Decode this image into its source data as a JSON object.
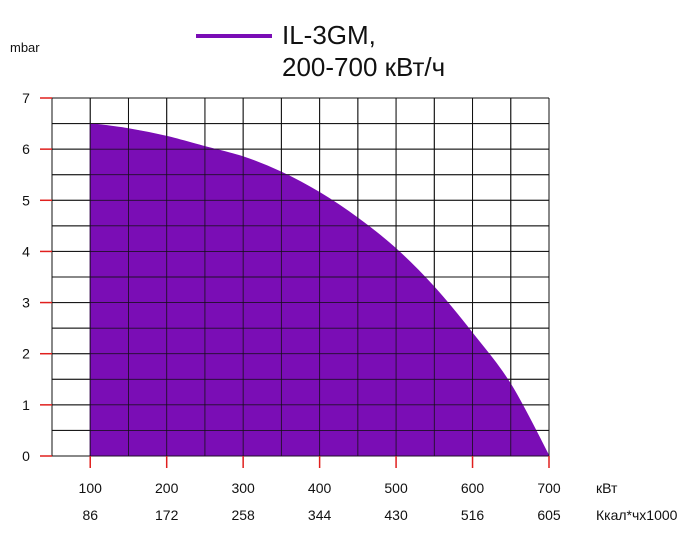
{
  "colors": {
    "series": "#7a0db5",
    "axis_tick": "#e0201e",
    "grid": "#111111"
  },
  "legend": {
    "line1": "IL-3GM,",
    "line2": "200-700 кВт/ч"
  },
  "chart_data": {
    "type": "area",
    "ylabel": "mbar",
    "xlabel": "кВт",
    "x2label": "Ккал*чх1000",
    "xlim": [
      50,
      700
    ],
    "ylim": [
      0,
      7
    ],
    "grid": true,
    "legend_position": "top",
    "x_ticks": [
      100,
      200,
      300,
      400,
      500,
      600,
      700
    ],
    "x_tick_labels": [
      "100",
      "200",
      "300",
      "400",
      "500",
      "600",
      "700"
    ],
    "x2_tick_labels": [
      "86",
      "172",
      "258",
      "344",
      "430",
      "516",
      "605"
    ],
    "y_ticks": [
      0,
      1,
      2,
      3,
      4,
      5,
      6,
      7
    ],
    "y_tick_labels": [
      "0",
      "1",
      "2",
      "3",
      "4",
      "5",
      "6",
      "7"
    ],
    "series": [
      {
        "name": "IL-3GM, 200-700 кВт/ч",
        "x": [
          100,
          150,
          200,
          250,
          300,
          350,
          400,
          450,
          500,
          550,
          600,
          650,
          700
        ],
        "y": [
          6.5,
          6.4,
          6.25,
          6.05,
          5.85,
          5.55,
          5.15,
          4.65,
          4.05,
          3.3,
          2.4,
          1.4,
          0.0
        ]
      }
    ]
  }
}
